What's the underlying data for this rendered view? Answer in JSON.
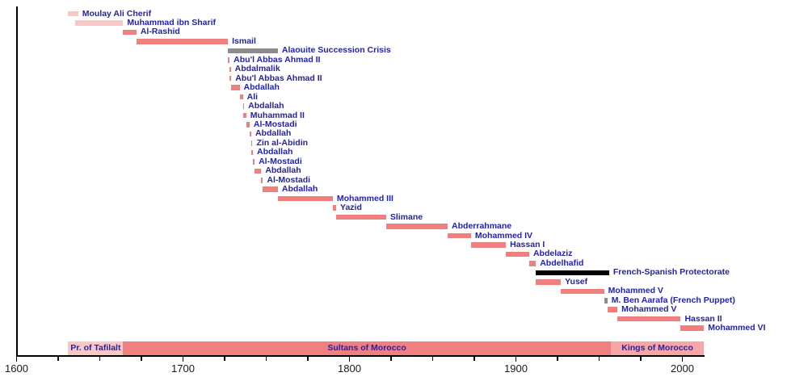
{
  "page": {
    "background": "#FFFFFF"
  },
  "chart_data": {
    "type": "bar",
    "subtype": "gantt-timeline",
    "title": "",
    "xlabel": "",
    "ylabel": "",
    "legend": "none",
    "axis": {
      "min": 1600,
      "max": 2013,
      "major_ticks": [
        1600,
        1700,
        1800,
        1900,
        2000
      ],
      "tick_labels": [
        "1600",
        "1700",
        "1800",
        "1900",
        "2000"
      ],
      "minor_tick_step": 25,
      "grid": false
    },
    "colors": {
      "reign": "#F08080",
      "tafilalt": "#FAC7C7",
      "crisis": "#8C8C8C",
      "protectorate": "#000000",
      "kings_band": "#F8A5A5",
      "label_text": "#2222B2",
      "axis_text": "#1A1A1A",
      "axis_line": "#000000"
    },
    "rulers": [
      {
        "label": "Moulay Ali Cherif",
        "from": 1631,
        "till": 1637,
        "color": "tafilalt"
      },
      {
        "label": "Muhammad ibn Sharif",
        "from": 1635,
        "till": 1664,
        "color": "tafilalt"
      },
      {
        "label": "Al-Rashid",
        "from": 1664,
        "till": 1672,
        "color": "reign"
      },
      {
        "label": "Ismail",
        "from": 1672,
        "till": 1727,
        "color": "reign"
      },
      {
        "label": "Alaouite Succession Crisis",
        "from": 1727,
        "till": 1757,
        "color": "crisis"
      },
      {
        "label": "Abu'l Abbas Ahmad II",
        "from": 1727,
        "till": 1728,
        "color": "reign"
      },
      {
        "label": "Abdalmalik",
        "from": 1728,
        "till": 1728,
        "color": "reign"
      },
      {
        "label": "Abu'l Abbas Ahmad II",
        "from": 1728,
        "till": 1729,
        "color": "reign"
      },
      {
        "label": "Abdallah",
        "from": 1729,
        "till": 1734,
        "color": "reign"
      },
      {
        "label": "Ali",
        "from": 1734,
        "till": 1736,
        "color": "reign"
      },
      {
        "label": "Abdallah",
        "from": 1736,
        "till": 1736,
        "color": "reign"
      },
      {
        "label": "Muhammad II",
        "from": 1736,
        "till": 1738,
        "color": "reign"
      },
      {
        "label": "Al-Mostadi",
        "from": 1738,
        "till": 1740,
        "color": "reign"
      },
      {
        "label": "Abdallah",
        "from": 1740,
        "till": 1741,
        "color": "reign"
      },
      {
        "label": "Zin al-Abidin",
        "from": 1741,
        "till": 1741,
        "color": "reign"
      },
      {
        "label": "Abdallah",
        "from": 1741,
        "till": 1742,
        "color": "reign"
      },
      {
        "label": "Al-Mostadi",
        "from": 1742,
        "till": 1743,
        "color": "reign"
      },
      {
        "label": "Abdallah",
        "from": 1743,
        "till": 1747,
        "color": "reign"
      },
      {
        "label": "Al-Mostadi",
        "from": 1747,
        "till": 1748,
        "color": "reign"
      },
      {
        "label": "Abdallah",
        "from": 1748,
        "till": 1757,
        "color": "reign"
      },
      {
        "label": "Mohammed III",
        "from": 1757,
        "till": 1790,
        "color": "reign"
      },
      {
        "label": "Yazid",
        "from": 1790,
        "till": 1792,
        "color": "reign"
      },
      {
        "label": "Slimane",
        "from": 1792,
        "till": 1822,
        "color": "reign"
      },
      {
        "label": "Abderrahmane",
        "from": 1822,
        "till": 1859,
        "color": "reign"
      },
      {
        "label": "Mohammed IV",
        "from": 1859,
        "till": 1873,
        "color": "reign"
      },
      {
        "label": "Hassan I",
        "from": 1873,
        "till": 1894,
        "color": "reign"
      },
      {
        "label": "Abdelaziz",
        "from": 1894,
        "till": 1908,
        "color": "reign"
      },
      {
        "label": "Abdelhafid",
        "from": 1908,
        "till": 1912,
        "color": "reign"
      },
      {
        "label": "French-Spanish Protectorate",
        "from": 1912,
        "till": 1956,
        "color": "protectorate"
      },
      {
        "label": "Yusef",
        "from": 1912,
        "till": 1927,
        "color": "reign"
      },
      {
        "label": "Mohammed V",
        "from": 1927,
        "till": 1953,
        "color": "reign"
      },
      {
        "label": "M. Ben Aarafa (French Puppet)",
        "from": 1953,
        "till": 1955,
        "color": "crisis"
      },
      {
        "label": "Mohammed V",
        "from": 1955,
        "till": 1961,
        "color": "reign"
      },
      {
        "label": "Hassan II",
        "from": 1961,
        "till": 1999,
        "color": "reign"
      },
      {
        "label": "Mohammed VI",
        "from": 1999,
        "till": 2013,
        "color": "reign"
      }
    ],
    "period_bands": [
      {
        "label": "Pr. of Tafilalt",
        "from": 1631,
        "till": 1664,
        "color": "tafilalt"
      },
      {
        "label": "Sultans of Morocco",
        "from": 1664,
        "till": 1957,
        "color": "reign"
      },
      {
        "label": "Kings of Morocco",
        "from": 1957,
        "till": 2013,
        "color": "kings_band"
      }
    ]
  }
}
